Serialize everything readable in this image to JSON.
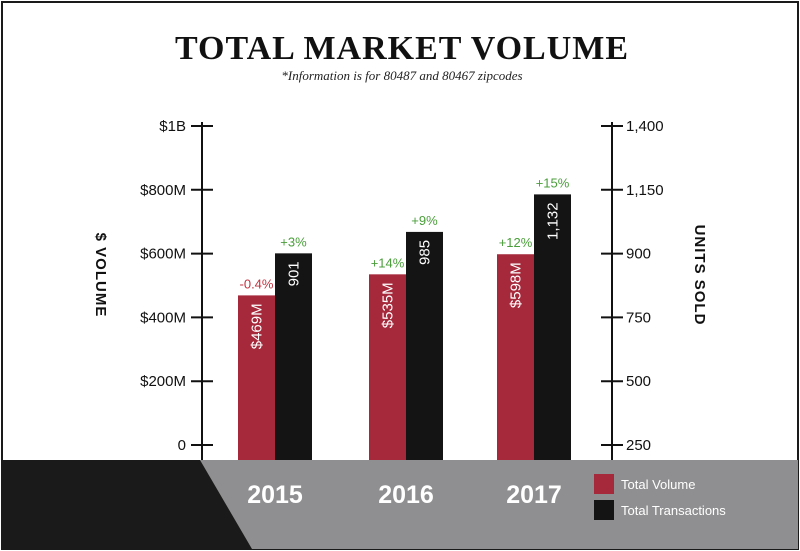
{
  "chart_data": {
    "type": "bar",
    "title": "TOTAL MARKET VOLUME",
    "subtitle": "*Information is for 80487 and 80467 zipcodes",
    "categories": [
      "2015",
      "2016",
      "2017"
    ],
    "left_axis": {
      "label": "$ VOLUME",
      "ylim": [
        0,
        1000000000
      ],
      "ticks": [
        {
          "value": 0,
          "label": "0"
        },
        {
          "value": 200000000,
          "label": "$200M"
        },
        {
          "value": 400000000,
          "label": "$400M"
        },
        {
          "value": 600000000,
          "label": "$600M"
        },
        {
          "value": 800000000,
          "label": "$800M"
        },
        {
          "value": 1000000000,
          "label": "$1B"
        }
      ]
    },
    "right_axis": {
      "label": "UNITS SOLD",
      "ylim": [
        250,
        1400
      ],
      "ticks": [
        {
          "value": 250,
          "label": "250"
        },
        {
          "value": 500,
          "label": "500"
        },
        {
          "value": 750,
          "label": "750"
        },
        {
          "value": 900,
          "label": "900"
        },
        {
          "value": 1150,
          "label": "1,150"
        },
        {
          "value": 1400,
          "label": "1,400"
        }
      ]
    },
    "series": [
      {
        "name": "Total Volume",
        "axis": "left",
        "color": "#a5283b",
        "values": [
          469000000,
          535000000,
          598000000
        ],
        "labels": [
          "$469M",
          "$535M",
          "$598M"
        ],
        "changes": [
          "-0.4%",
          "+14%",
          "+12%"
        ]
      },
      {
        "name": "Total Transactions",
        "axis": "right",
        "color": "#141414",
        "values": [
          901,
          985,
          1132
        ],
        "labels": [
          "901",
          "985",
          "1,132"
        ],
        "changes": [
          "+3%",
          "+9%",
          "+15%"
        ]
      }
    ],
    "legend": "bottom-right",
    "grid": false,
    "colors": {
      "positive_change": "#4a9e3a",
      "negative_change": "#c0323f",
      "band_dark": "#1a1a1a",
      "band_gray": "#8f8f91",
      "frame": "#1a1a1a"
    }
  }
}
